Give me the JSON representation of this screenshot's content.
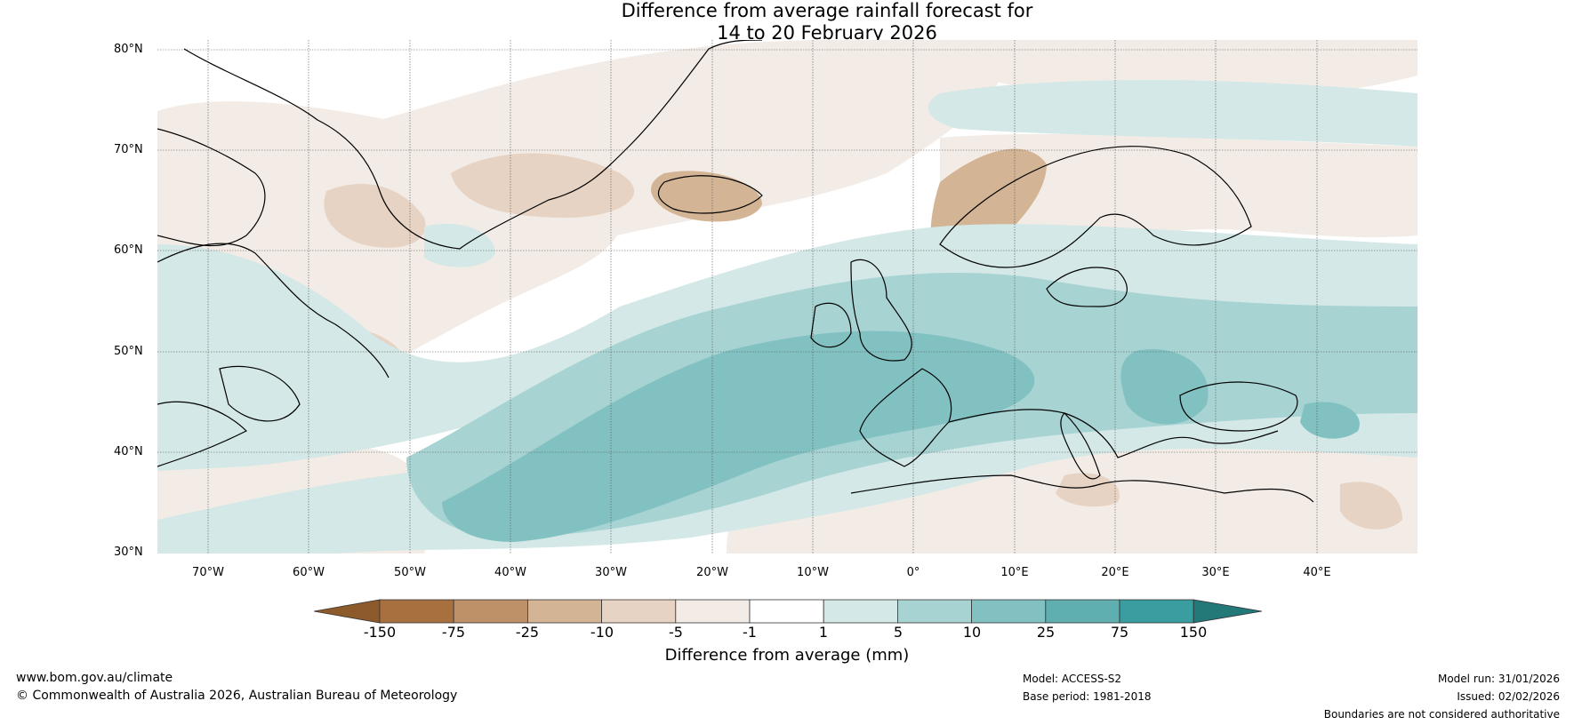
{
  "title": {
    "line1": "Difference from average rainfall forecast for",
    "line2": "14 to 20 February 2026"
  },
  "map": {
    "region": "North Atlantic and Europe",
    "lat_labels": [
      "80°N",
      "70°N",
      "60°N",
      "50°N",
      "40°N",
      "30°N"
    ],
    "lon_labels": [
      "70°W",
      "60°W",
      "50°W",
      "40°W",
      "30°W",
      "20°W",
      "10°W",
      "0°",
      "10°E",
      "20°E",
      "30°E",
      "40°E"
    ]
  },
  "colorbar": {
    "label": "Difference from average (mm)",
    "ticks": [
      "-150",
      "-75",
      "-25",
      "-10",
      "-5",
      "-1",
      "1",
      "5",
      "10",
      "25",
      "75",
      "150"
    ],
    "colors": {
      "lt_m150": "#8c5a2b",
      "m150_m75": "#a8703f",
      "m75_m25": "#bf9169",
      "m25_m10": "#d3b495",
      "m10_m5": "#e6d3c3",
      "m5_m1": "#f3ece6",
      "m1_1": "#ffffff",
      "1_5": "#d3e8e7",
      "5_10": "#a8d3d3",
      "10_25": "#82c1c1",
      "25_75": "#5faeb0",
      "75_150": "#3a9d9f",
      "gt_150": "#237878"
    }
  },
  "footer": {
    "website": "www.bom.gov.au/climate",
    "copyright": "© Commonwealth of Australia 2026, Australian Bureau of Meteorology",
    "model": "Model: ACCESS-S2",
    "base_period": "Base period: 1981-2018",
    "model_run": "Model run: 31/01/2026",
    "issued": "Issued: 02/02/2026",
    "disclaimer": "Boundaries are not considered authoritative"
  }
}
